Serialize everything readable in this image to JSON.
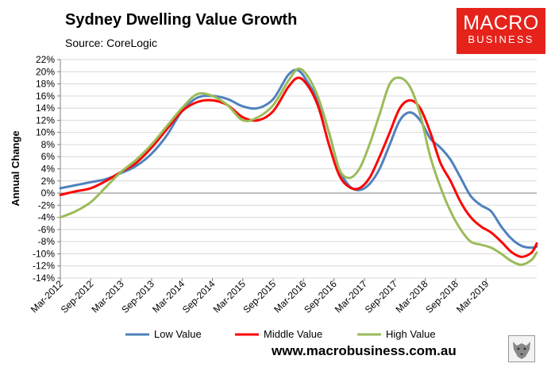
{
  "header": {
    "title": "Sydney Dwelling Value Growth",
    "source": "Source: CoreLogic"
  },
  "logo": {
    "line1": "MACRO",
    "line2": "BUSINESS"
  },
  "footer": {
    "website": "www.macrobusiness.com.au"
  },
  "colors": {
    "low": "#4f81bd",
    "middle": "#ff0000",
    "high": "#9bbb59",
    "logo_bg": "#e5231b"
  },
  "chart_data": {
    "type": "line",
    "title": "Sydney Dwelling Value Growth",
    "xlabel": "",
    "ylabel": "Annual Change",
    "ylim": [
      -14,
      22
    ],
    "ytick_step": 2,
    "yticks": [
      "-14%",
      "-12%",
      "-10%",
      "-8%",
      "-6%",
      "-4%",
      "-2%",
      "0%",
      "2%",
      "4%",
      "6%",
      "8%",
      "10%",
      "12%",
      "14%",
      "16%",
      "18%",
      "20%",
      "22%"
    ],
    "x_start": "Mar-2012",
    "x_end": "Dec-2019",
    "xtick_labels": [
      "Mar-2012",
      "Sep-2012",
      "Mar-2013",
      "Sep-2013",
      "Mar-2014",
      "Sep-2014",
      "Mar-2015",
      "Sep-2015",
      "Mar-2016",
      "Sep-2016",
      "Mar-2017",
      "Sep-2017",
      "Mar-2018",
      "Sep-2018",
      "Mar-2019"
    ],
    "xtick_months": [
      0,
      6,
      12,
      18,
      24,
      30,
      36,
      42,
      48,
      54,
      60,
      66,
      72,
      78,
      84
    ],
    "legend_position": "bottom",
    "series": [
      {
        "name": "Low Value",
        "color": "#4f81bd",
        "points": [
          [
            0,
            0.8
          ],
          [
            3,
            1.3
          ],
          [
            6,
            1.8
          ],
          [
            9,
            2.3
          ],
          [
            12,
            3.3
          ],
          [
            15,
            4.5
          ],
          [
            18,
            6.5
          ],
          [
            21,
            9.5
          ],
          [
            24,
            13.5
          ],
          [
            27,
            15.7
          ],
          [
            30,
            16.0
          ],
          [
            33,
            15.5
          ],
          [
            36,
            14.3
          ],
          [
            39,
            14.0
          ],
          [
            42,
            15.5
          ],
          [
            45,
            19.5
          ],
          [
            47,
            20.2
          ],
          [
            49,
            18.0
          ],
          [
            51,
            15.0
          ],
          [
            53,
            10.0
          ],
          [
            55,
            4.0
          ],
          [
            57,
            1.2
          ],
          [
            59,
            0.5
          ],
          [
            61,
            1.5
          ],
          [
            63,
            4.0
          ],
          [
            65,
            8.0
          ],
          [
            67,
            12.0
          ],
          [
            69,
            13.3
          ],
          [
            71,
            12.0
          ],
          [
            73,
            9.0
          ],
          [
            75,
            7.5
          ],
          [
            77,
            5.5
          ],
          [
            79,
            2.5
          ],
          [
            81,
            -0.5
          ],
          [
            83,
            -2.0
          ],
          [
            85,
            -3.0
          ],
          [
            87,
            -5.5
          ],
          [
            89,
            -7.5
          ],
          [
            91,
            -8.7
          ],
          [
            93,
            -9.0
          ],
          [
            94,
            -8.8
          ]
        ]
      },
      {
        "name": "Middle Value",
        "color": "#ff0000",
        "points": [
          [
            0,
            -0.3
          ],
          [
            3,
            0.3
          ],
          [
            6,
            0.8
          ],
          [
            9,
            2.0
          ],
          [
            12,
            3.5
          ],
          [
            15,
            5.0
          ],
          [
            18,
            7.5
          ],
          [
            21,
            10.5
          ],
          [
            24,
            13.5
          ],
          [
            27,
            15.0
          ],
          [
            30,
            15.3
          ],
          [
            33,
            14.5
          ],
          [
            36,
            12.5
          ],
          [
            39,
            12.0
          ],
          [
            42,
            13.5
          ],
          [
            45,
            17.5
          ],
          [
            47,
            19.0
          ],
          [
            49,
            17.5
          ],
          [
            51,
            14.0
          ],
          [
            53,
            8.0
          ],
          [
            55,
            3.0
          ],
          [
            57,
            1.0
          ],
          [
            59,
            0.8
          ],
          [
            61,
            2.5
          ],
          [
            63,
            6.0
          ],
          [
            65,
            10.0
          ],
          [
            67,
            14.0
          ],
          [
            69,
            15.3
          ],
          [
            71,
            14.0
          ],
          [
            73,
            10.0
          ],
          [
            75,
            5.0
          ],
          [
            77,
            2.0
          ],
          [
            79,
            -1.5
          ],
          [
            81,
            -4.0
          ],
          [
            83,
            -5.5
          ],
          [
            85,
            -6.5
          ],
          [
            87,
            -8.0
          ],
          [
            89,
            -9.7
          ],
          [
            91,
            -10.5
          ],
          [
            93,
            -9.8
          ],
          [
            94,
            -8.3
          ]
        ]
      },
      {
        "name": "High Value",
        "color": "#9bbb59",
        "points": [
          [
            0,
            -4.0
          ],
          [
            3,
            -3.0
          ],
          [
            6,
            -1.5
          ],
          [
            9,
            1.0
          ],
          [
            12,
            3.5
          ],
          [
            15,
            5.5
          ],
          [
            18,
            8.0
          ],
          [
            21,
            11.0
          ],
          [
            24,
            14.0
          ],
          [
            27,
            16.3
          ],
          [
            30,
            16.0
          ],
          [
            33,
            14.5
          ],
          [
            36,
            12.0
          ],
          [
            39,
            12.5
          ],
          [
            42,
            14.5
          ],
          [
            45,
            18.5
          ],
          [
            47,
            20.5
          ],
          [
            49,
            19.0
          ],
          [
            51,
            15.5
          ],
          [
            53,
            10.0
          ],
          [
            55,
            4.0
          ],
          [
            57,
            2.5
          ],
          [
            59,
            4.0
          ],
          [
            61,
            8.0
          ],
          [
            63,
            13.0
          ],
          [
            65,
            18.0
          ],
          [
            67,
            19.0
          ],
          [
            69,
            17.5
          ],
          [
            71,
            13.0
          ],
          [
            73,
            6.0
          ],
          [
            75,
            1.0
          ],
          [
            77,
            -3.0
          ],
          [
            79,
            -6.0
          ],
          [
            81,
            -8.0
          ],
          [
            83,
            -8.5
          ],
          [
            85,
            -9.0
          ],
          [
            87,
            -10.0
          ],
          [
            89,
            -11.2
          ],
          [
            91,
            -11.8
          ],
          [
            93,
            -11.0
          ],
          [
            94,
            -9.8
          ]
        ]
      }
    ]
  }
}
